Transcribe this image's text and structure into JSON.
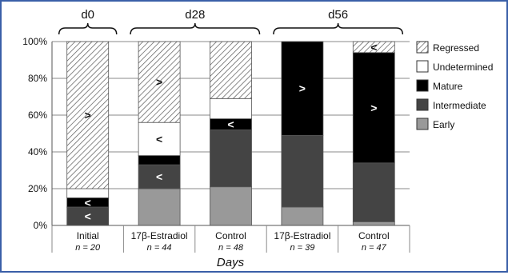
{
  "chart_data": {
    "type": "bar",
    "stacked": true,
    "xlabel": "Days",
    "ylabel": "",
    "ylim": [
      0,
      100
    ],
    "yticks": [
      "0%",
      "20%",
      "40%",
      "60%",
      "80%",
      "100%"
    ],
    "grid": true,
    "legend_position": "right",
    "groups": [
      {
        "label": "d0",
        "bars": [
          0
        ]
      },
      {
        "label": "d28",
        "bars": [
          1,
          2
        ]
      },
      {
        "label": "d56",
        "bars": [
          3,
          4
        ]
      }
    ],
    "categories": [
      "Initial",
      "17β-Estradiol",
      "Control",
      "17β-Estradiol",
      "Control"
    ],
    "sample_sizes": [
      "n = 20",
      "n = 44",
      "n = 48",
      "n = 39",
      "n = 47"
    ],
    "series": [
      {
        "name": "Early",
        "color": "#999999",
        "values": [
          0,
          20,
          21,
          10,
          2
        ]
      },
      {
        "name": "Intermediate",
        "color": "#444444",
        "values": [
          10,
          13,
          31,
          39,
          32
        ]
      },
      {
        "name": "Mature",
        "color": "#000000",
        "values": [
          5,
          5,
          6,
          51,
          60
        ]
      },
      {
        "name": "Undetermined",
        "color": "#ffffff",
        "values": [
          5,
          18,
          11,
          0,
          0
        ]
      },
      {
        "name": "Regressed",
        "color": "hatch",
        "values": [
          80,
          44,
          31,
          0,
          6
        ]
      }
    ],
    "annotations": [
      {
        "bar": 0,
        "series": "Regressed",
        "text": ">"
      },
      {
        "bar": 0,
        "series": "Mature",
        "text": "<"
      },
      {
        "bar": 0,
        "series": "Intermediate",
        "text": "<"
      },
      {
        "bar": 1,
        "series": "Regressed",
        "text": ">"
      },
      {
        "bar": 1,
        "series": "Undetermined",
        "text": "<"
      },
      {
        "bar": 1,
        "series": "Intermediate",
        "text": "<"
      },
      {
        "bar": 2,
        "series": "Mature",
        "text": "<"
      },
      {
        "bar": 3,
        "series": "Mature",
        "text": ">"
      },
      {
        "bar": 4,
        "series": "Mature",
        "text": ">"
      },
      {
        "bar": 4,
        "series": "Regressed",
        "text": "<"
      }
    ]
  }
}
